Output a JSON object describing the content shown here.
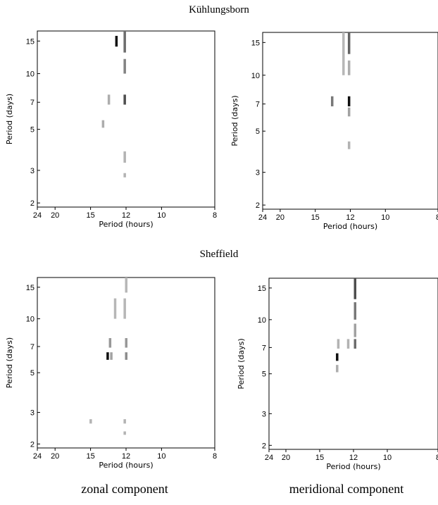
{
  "section_titles": [
    "Kühlungsborn",
    "Sheffield"
  ],
  "column_captions": [
    "zonal component",
    "meridional component"
  ],
  "chart_data": [
    {
      "type": "heatmap",
      "station": "Kühlungsborn",
      "component": "zonal",
      "xlabel": "Period (hours)",
      "ylabel": "Period (days)",
      "x_ticks": [
        24,
        20,
        15,
        12,
        10,
        8
      ],
      "y_ticks": [
        15,
        10,
        7,
        5,
        3,
        2
      ],
      "x_reciprocal": true,
      "y_log": true,
      "cells": [
        {
          "x": 12.7,
          "y": [
            14,
            16
          ],
          "level": 1.0
        },
        {
          "x": 12.1,
          "y": [
            13,
            17
          ],
          "level": 0.55
        },
        {
          "x": 12.1,
          "y": [
            10,
            12
          ],
          "level": 0.45
        },
        {
          "x": 12.1,
          "y": [
            6.8,
            7.7
          ],
          "level": 0.7
        },
        {
          "x": 13.3,
          "y": [
            6.8,
            7.7
          ],
          "level": 0.25
        },
        {
          "x": 13.8,
          "y": [
            5.1,
            5.6
          ],
          "level": 0.25
        },
        {
          "x": 12.1,
          "y": [
            3.3,
            3.8
          ],
          "level": 0.22
        },
        {
          "x": 12.1,
          "y": [
            2.75,
            2.9
          ],
          "level": 0.22
        }
      ]
    },
    {
      "type": "heatmap",
      "station": "Kühlungsborn",
      "component": "meridional",
      "xlabel": "Period (hours)",
      "ylabel": "Period (days)",
      "x_ticks": [
        24,
        20,
        15,
        12,
        10,
        8
      ],
      "y_ticks": [
        15,
        10,
        7,
        5,
        3,
        2
      ],
      "x_reciprocal": true,
      "y_log": true,
      "cells": [
        {
          "x": 12.1,
          "y": [
            13,
            17
          ],
          "level": 0.6
        },
        {
          "x": 12.5,
          "y": [
            10,
            17
          ],
          "level": 0.2
        },
        {
          "x": 12.1,
          "y": [
            10,
            12
          ],
          "level": 0.25
        },
        {
          "x": 12.1,
          "y": [
            6.8,
            7.7
          ],
          "level": 1.0
        },
        {
          "x": 13.4,
          "y": [
            6.8,
            7.7
          ],
          "level": 0.5
        },
        {
          "x": 12.1,
          "y": [
            6.0,
            6.7
          ],
          "level": 0.3
        },
        {
          "x": 12.1,
          "y": [
            4.0,
            4.4
          ],
          "level": 0.22
        }
      ]
    },
    {
      "type": "heatmap",
      "station": "Sheffield",
      "component": "zonal",
      "xlabel": "Period (hours)",
      "ylabel": "Period (days)",
      "x_ticks": [
        24,
        20,
        15,
        12,
        10,
        8
      ],
      "y_ticks": [
        15,
        10,
        7,
        5,
        3,
        2
      ],
      "x_reciprocal": true,
      "y_log": true,
      "cells": [
        {
          "x": 12.0,
          "y": [
            14,
            17
          ],
          "level": 0.2
        },
        {
          "x": 12.8,
          "y": [
            10,
            13
          ],
          "level": 0.2
        },
        {
          "x": 12.1,
          "y": [
            10,
            13
          ],
          "level": 0.2
        },
        {
          "x": 13.2,
          "y": [
            6.9,
            7.8
          ],
          "level": 0.35
        },
        {
          "x": 12.0,
          "y": [
            6.9,
            7.8
          ],
          "level": 0.35
        },
        {
          "x": 13.4,
          "y": [
            5.9,
            6.5
          ],
          "level": 1.0
        },
        {
          "x": 13.1,
          "y": [
            5.9,
            6.5
          ],
          "level": 0.3
        },
        {
          "x": 12.0,
          "y": [
            5.9,
            6.5
          ],
          "level": 0.4
        },
        {
          "x": 15.0,
          "y": [
            2.6,
            2.75
          ],
          "level": 0.22
        },
        {
          "x": 12.1,
          "y": [
            2.6,
            2.75
          ],
          "level": 0.22
        },
        {
          "x": 12.1,
          "y": [
            2.25,
            2.35
          ],
          "level": 0.22
        }
      ]
    },
    {
      "type": "heatmap",
      "station": "Sheffield",
      "component": "meridional",
      "xlabel": "Period (hours)",
      "ylabel": "Period (days)",
      "x_ticks": [
        24,
        20,
        15,
        12,
        10,
        8
      ],
      "y_ticks": [
        15,
        10,
        7,
        5,
        3,
        2
      ],
      "x_reciprocal": true,
      "y_log": true,
      "cells": [
        {
          "x": 11.9,
          "y": [
            13,
            17
          ],
          "level": 0.7
        },
        {
          "x": 11.9,
          "y": [
            10,
            12.5
          ],
          "level": 0.5
        },
        {
          "x": 11.9,
          "y": [
            8,
            9.5
          ],
          "level": 0.3
        },
        {
          "x": 11.9,
          "y": [
            6.9,
            7.8
          ],
          "level": 0.55
        },
        {
          "x": 12.4,
          "y": [
            6.9,
            7.8
          ],
          "level": 0.22
        },
        {
          "x": 13.2,
          "y": [
            6.9,
            7.8
          ],
          "level": 0.22
        },
        {
          "x": 13.3,
          "y": [
            5.9,
            6.5
          ],
          "level": 1.0
        },
        {
          "x": 13.3,
          "y": [
            5.1,
            5.6
          ],
          "level": 0.25
        }
      ]
    }
  ]
}
